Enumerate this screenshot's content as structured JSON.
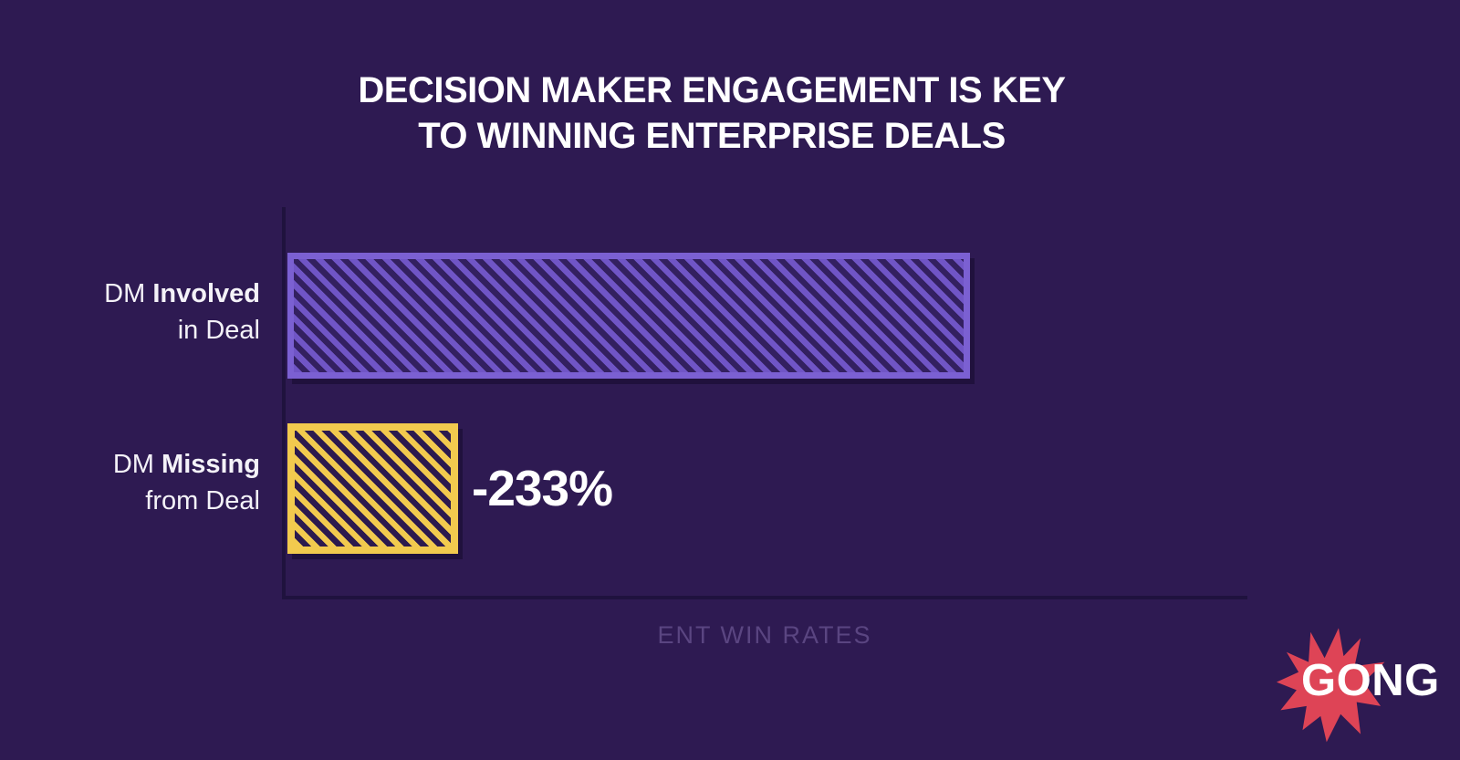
{
  "title": {
    "line1": "DECISION MAKER ENGAGEMENT IS KEY",
    "line2": "TO WINNING ENTERPRISE DEALS"
  },
  "bars": [
    {
      "label_prefix": "DM ",
      "label_emphasis": "Involved",
      "label_line2": "in Deal",
      "annotation": ""
    },
    {
      "label_prefix": "DM ",
      "label_emphasis": "Missing",
      "label_line2": "from Deal",
      "annotation": "-233%"
    }
  ],
  "axis": {
    "xlabel": "ENT WIN RATES"
  },
  "logo": {
    "wordmark": "GONG"
  },
  "colors": {
    "background": "#2E1A52",
    "axis_line": "#1F123E",
    "bar_purple": "#7055C6",
    "bar_purple_border": "#7B60D2",
    "bar_purple_gap": "#332060",
    "bar_yellow": "#F2CA4E",
    "bar_yellow_gap": "#2C1A4E",
    "xlabel_text": "#5A4581",
    "burst_red": "#DE4456",
    "text_white": "#FFFFFF"
  },
  "chart_data": {
    "type": "bar",
    "orientation": "horizontal",
    "title": "DECISION MAKER ENGAGEMENT IS KEY TO WINNING ENTERPRISE DEALS",
    "categories": [
      "DM Involved in Deal",
      "DM Missing from Deal"
    ],
    "values": [
      100,
      25
    ],
    "value_note": "relative bar lengths (indexed, first bar = 100); exact win rates not labeled",
    "annotations": [
      {
        "category": "DM Missing from Deal",
        "text": "-233%"
      }
    ],
    "xlabel": "ENT WIN RATES",
    "ylabel": "",
    "series_colors": [
      "#7055C6",
      "#F2CA4E"
    ],
    "hatch": "diagonal-backslash",
    "grid": false,
    "legend": false,
    "axis_ticks": "none"
  }
}
